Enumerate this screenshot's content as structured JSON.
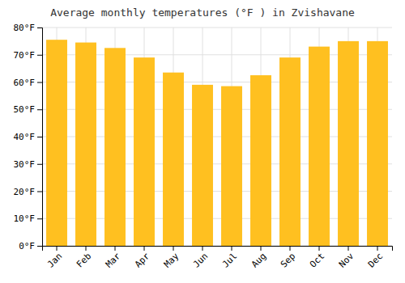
{
  "chart_data": {
    "type": "bar",
    "title": "Average monthly temperatures (°F ) in Zvishavane",
    "categories": [
      "Jan",
      "Feb",
      "Mar",
      "Apr",
      "May",
      "Jun",
      "Jul",
      "Aug",
      "Sep",
      "Oct",
      "Nov",
      "Dec"
    ],
    "values": [
      75.5,
      74.5,
      72.5,
      69.0,
      63.5,
      59.0,
      58.5,
      62.5,
      69.0,
      73.0,
      75.0,
      75.0
    ],
    "color": "#FFC020",
    "ylim": [
      0,
      80
    ],
    "yticks": [
      {
        "value": 0,
        "label": "0°F"
      },
      {
        "value": 10,
        "label": "10°F"
      },
      {
        "value": 20,
        "label": "20°F"
      },
      {
        "value": 30,
        "label": "30°F"
      },
      {
        "value": 40,
        "label": "40°F"
      },
      {
        "value": 50,
        "label": "50°F"
      },
      {
        "value": 60,
        "label": "60°F"
      },
      {
        "value": 70,
        "label": "70°F"
      },
      {
        "value": 80,
        "label": "80°F"
      }
    ],
    "grid": true
  }
}
